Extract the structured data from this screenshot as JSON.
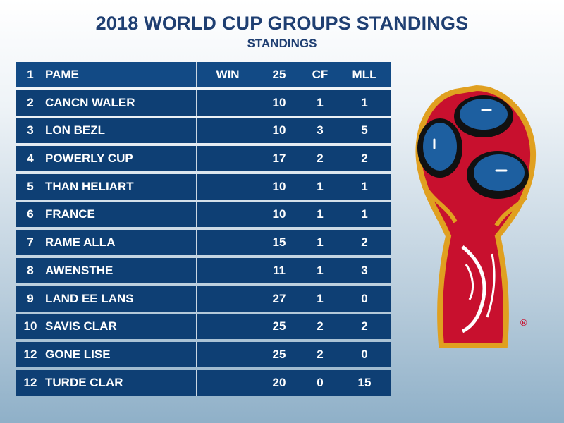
{
  "title": "2018 WORLD CUP GROUPS STANDINGS",
  "subtitle": "STANDINGS",
  "table": {
    "header": {
      "pos": "1",
      "team": "PAME",
      "win": "WIN",
      "pts": "25",
      "cf": "CF",
      "mll": "MLL"
    },
    "rows": [
      {
        "pos": "2",
        "team": "CANCN WALER",
        "pts": "10",
        "cf": "1",
        "mll": "1"
      },
      {
        "pos": "3",
        "team": "LON BEZL",
        "pts": "10",
        "cf": "3",
        "mll": "5"
      },
      {
        "pos": "4",
        "team": "POWERLY CUP",
        "pts": "17",
        "cf": "2",
        "mll": "2"
      },
      {
        "pos": "5",
        "team": "THAN HELIART",
        "pts": "10",
        "cf": "1",
        "mll": "1"
      },
      {
        "pos": "6",
        "team": "FRANCE",
        "pts": "10",
        "cf": "1",
        "mll": "1"
      },
      {
        "pos": "7",
        "team": "RAME ALLA",
        "pts": "15",
        "cf": "1",
        "mll": "2"
      },
      {
        "pos": "8",
        "team": "AWENSTHE",
        "pts": "11",
        "cf": "1",
        "mll": "3"
      },
      {
        "pos": "9",
        "team": "LAND EE LANS",
        "pts": "27",
        "cf": "1",
        "mll": "0"
      },
      {
        "pos": "10",
        "team": "SAVIS CLAR",
        "pts": "25",
        "cf": "2",
        "mll": "2"
      },
      {
        "pos": "12",
        "team": "GONE LISE",
        "pts": "25",
        "cf": "2",
        "mll": "0"
      },
      {
        "pos": "12",
        "team": "TURDE CLAR",
        "pts": "20",
        "cf": "0",
        "mll": "15"
      }
    ]
  },
  "trophy": {
    "icon": "world-cup-trophy-icon",
    "registered_mark": "®"
  },
  "colors": {
    "title": "#1f3f72",
    "row_bg": "#0e3f74",
    "header_bg": "#124a85",
    "trophy_red": "#c8102e",
    "trophy_gold": "#e0a020"
  }
}
